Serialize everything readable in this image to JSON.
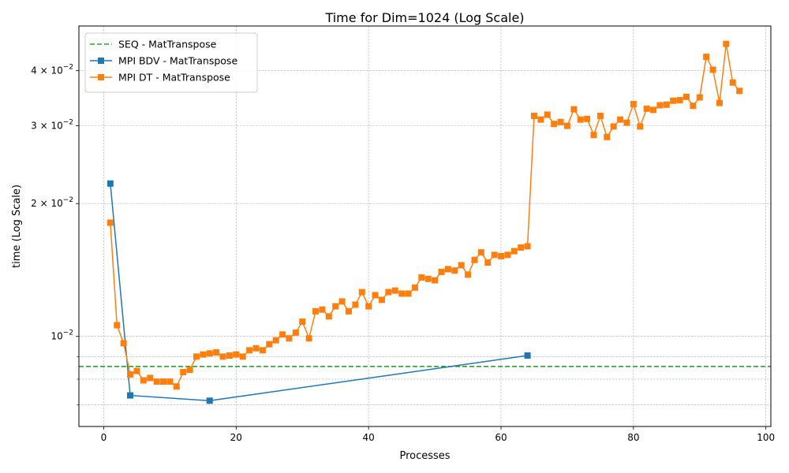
{
  "chart_data": {
    "type": "line",
    "title": "Time for Dim=1024 (Log Scale)",
    "xlabel": "Processes",
    "ylabel": "time (Log Scale)",
    "yscale": "log",
    "xlim": [
      -3.75,
      100.75
    ],
    "ylim": [
      0.00625,
      0.0505
    ],
    "grid": true,
    "legend_position": "top-left",
    "x_ticks": [
      0,
      20,
      40,
      60,
      80,
      100
    ],
    "x_tick_labels": [
      "0",
      "20",
      "40",
      "60",
      "80",
      "100"
    ],
    "y_major_ticks": [
      0.01,
      0.02,
      0.03,
      0.04
    ],
    "y_tick_labels": [
      {
        "mantissa": "10",
        "exp": "−2"
      },
      {
        "mantissa": "2 × 10",
        "exp": "−2"
      },
      {
        "mantissa": "3 × 10",
        "exp": "−2"
      },
      {
        "mantissa": "4 × 10",
        "exp": "−2"
      }
    ],
    "y_minor_ticks": [
      0.007,
      0.008,
      0.009
    ],
    "series": [
      {
        "name": "SEQ - MatTranspose",
        "kind": "hline",
        "style": "dashed",
        "color": "#2ca02c",
        "y": 0.00855
      },
      {
        "name": "MPI BDV - MatTranspose",
        "kind": "line",
        "marker": "square",
        "color": "#1f77b4",
        "x": [
          1,
          4,
          16,
          64
        ],
        "y": [
          0.0222,
          0.00735,
          0.00715,
          0.00905
        ]
      },
      {
        "name": "MPI DT - MatTranspose",
        "kind": "line",
        "marker": "square",
        "color": "#ff7f0e",
        "x": [
          1,
          2,
          3,
          4,
          5,
          6,
          7,
          8,
          9,
          10,
          11,
          12,
          13,
          14,
          15,
          16,
          17,
          18,
          19,
          20,
          21,
          22,
          23,
          24,
          25,
          26,
          27,
          28,
          29,
          30,
          31,
          32,
          33,
          34,
          35,
          36,
          37,
          38,
          39,
          40,
          41,
          42,
          43,
          44,
          45,
          46,
          47,
          48,
          49,
          50,
          51,
          52,
          53,
          54,
          55,
          56,
          57,
          58,
          59,
          60,
          61,
          62,
          63,
          64,
          65,
          66,
          67,
          68,
          69,
          70,
          71,
          72,
          73,
          74,
          75,
          76,
          77,
          78,
          79,
          80,
          81,
          82,
          83,
          84,
          85,
          86,
          87,
          88,
          89,
          90,
          91,
          92,
          93,
          94,
          95,
          96
        ],
        "y": [
          0.0181,
          0.0106,
          0.00965,
          0.0082,
          0.00835,
          0.00795,
          0.00805,
          0.0079,
          0.0079,
          0.0079,
          0.0077,
          0.0083,
          0.0084,
          0.009,
          0.0091,
          0.00915,
          0.0092,
          0.009,
          0.00905,
          0.0091,
          0.009,
          0.0093,
          0.0094,
          0.0093,
          0.0096,
          0.0098,
          0.0101,
          0.0099,
          0.0102,
          0.0108,
          0.0099,
          0.0114,
          0.0115,
          0.0111,
          0.0117,
          0.012,
          0.0114,
          0.0118,
          0.0126,
          0.0117,
          0.0124,
          0.0121,
          0.0126,
          0.0127,
          0.0125,
          0.0125,
          0.0129,
          0.0136,
          0.0135,
          0.0134,
          0.014,
          0.0142,
          0.0141,
          0.0145,
          0.0138,
          0.0149,
          0.0155,
          0.0147,
          0.0153,
          0.0152,
          0.0153,
          0.0156,
          0.0159,
          0.016,
          0.0316,
          0.031,
          0.0318,
          0.0303,
          0.0306,
          0.03,
          0.0327,
          0.031,
          0.0311,
          0.0286,
          0.0316,
          0.0283,
          0.0299,
          0.031,
          0.0305,
          0.0336,
          0.0299,
          0.0328,
          0.0326,
          0.0334,
          0.0335,
          0.0342,
          0.0343,
          0.0349,
          0.0333,
          0.0348,
          0.043,
          0.0402,
          0.0338,
          0.046,
          0.0376,
          0.036
        ]
      }
    ]
  }
}
